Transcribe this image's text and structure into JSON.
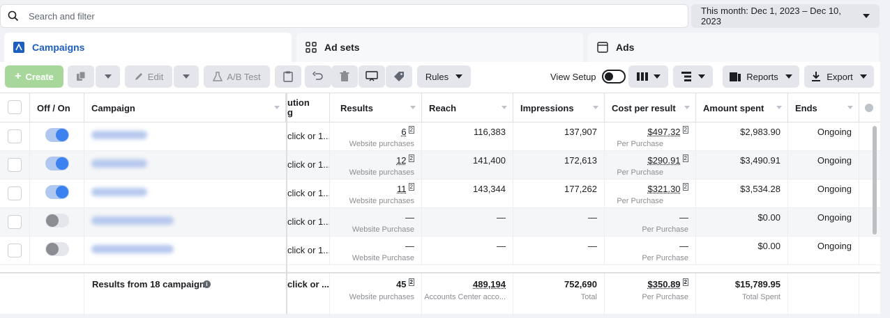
{
  "search": {
    "placeholder": "Search and filter"
  },
  "date_range": {
    "label": "This month: Dec 1, 2023 – Dec 10, 2023"
  },
  "tabs": [
    {
      "label": "Campaigns",
      "icon": "campaign-icon",
      "active": true
    },
    {
      "label": "Ad sets",
      "icon": "grid-icon",
      "active": false
    },
    {
      "label": "Ads",
      "icon": "window-icon",
      "active": false
    }
  ],
  "toolbar": {
    "create": "Create",
    "edit": "Edit",
    "ab_test": "A/B Test",
    "rules": "Rules",
    "view_setup": "View Setup",
    "reports": "Reports",
    "export": "Export"
  },
  "columns": {
    "offon": "Off / On",
    "campaign": "Campaign",
    "attribution": "ution\ng",
    "results": "Results",
    "reach": "Reach",
    "impressions": "Impressions",
    "cost_per_result": "Cost per result",
    "amount_spent": "Amount spent",
    "ends": "Ends"
  },
  "rows": [
    {
      "on": true,
      "attribution": "click or 1...",
      "results": "6",
      "results_sub": "Website purchases",
      "reach": "116,383",
      "impressions": "137,907",
      "cpr": "$497.32",
      "cpr_sub": "Per Purchase",
      "spent": "$2,983.90",
      "ends": "Ongoing"
    },
    {
      "on": true,
      "attribution": "click or 1...",
      "results": "12",
      "results_sub": "Website purchases",
      "reach": "141,400",
      "impressions": "172,613",
      "cpr": "$290.91",
      "cpr_sub": "Per Purchase",
      "spent": "$3,490.91",
      "ends": "Ongoing"
    },
    {
      "on": true,
      "attribution": "click or 1...",
      "results": "11",
      "results_sub": "Website purchases",
      "reach": "143,344",
      "impressions": "177,262",
      "cpr": "$321.30",
      "cpr_sub": "Per Purchase",
      "spent": "$3,534.28",
      "ends": "Ongoing"
    },
    {
      "on": false,
      "attribution": "click or 1...",
      "results": "—",
      "results_sub": "Website Purchase",
      "reach": "—",
      "impressions": "—",
      "cpr": "—",
      "cpr_sub": "Per Purchase",
      "spent": "$0.00",
      "ends": "Ongoing"
    },
    {
      "on": false,
      "attribution": "click or 1...",
      "results": "—",
      "results_sub": "Website Purchase",
      "reach": "—",
      "impressions": "—",
      "cpr": "—",
      "cpr_sub": "Per Purchase",
      "spent": "$0.00",
      "ends": "Ongoing"
    }
  ],
  "footer": {
    "label": "Results from 18 campaigns",
    "attribution": "click or ...",
    "results": "45",
    "results_sub": "Website purchases",
    "reach": "489,194",
    "reach_sub": "Accounts Center acco...",
    "impressions": "752,690",
    "impressions_sub": "Total",
    "cpr": "$350.89",
    "cpr_sub": "Per Purchase",
    "spent": "$15,789.95",
    "spent_sub": "Total Spent"
  },
  "colors": {
    "accent": "#1d5fbf",
    "toggle_on": "#3b82f0",
    "create_bg": "#a8d79b"
  }
}
